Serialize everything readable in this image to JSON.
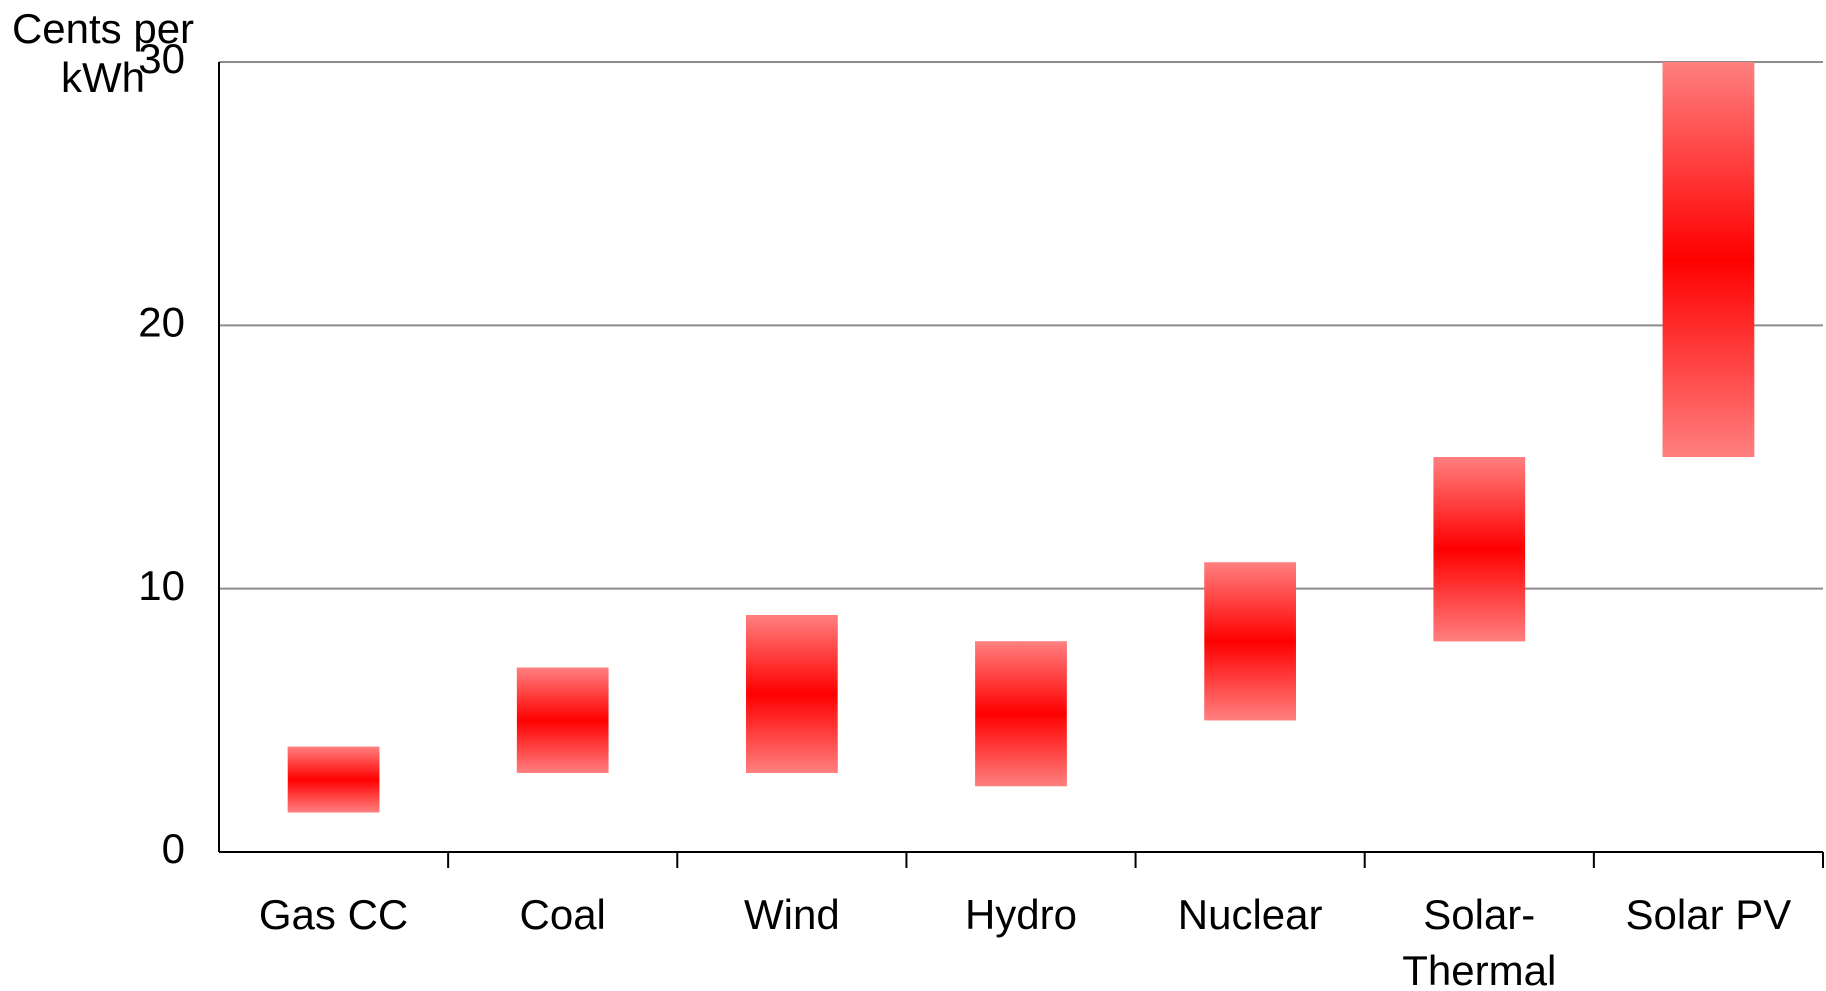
{
  "chart_data": {
    "type": "floating-bar",
    "ylabel": "Cents per kWh",
    "categories": [
      "Gas CC",
      "Coal",
      "Wind",
      "Hydro",
      "Nuclear",
      "Solar-Thermal",
      "Solar PV"
    ],
    "low": [
      1.5,
      3,
      3,
      2.5,
      5,
      8,
      15
    ],
    "high": [
      4,
      7,
      9,
      8,
      11,
      15,
      30
    ],
    "color": "#ff0000",
    "ylim": [
      0,
      30
    ],
    "yticks": [
      0,
      10,
      20,
      30
    ],
    "grid": true
  }
}
